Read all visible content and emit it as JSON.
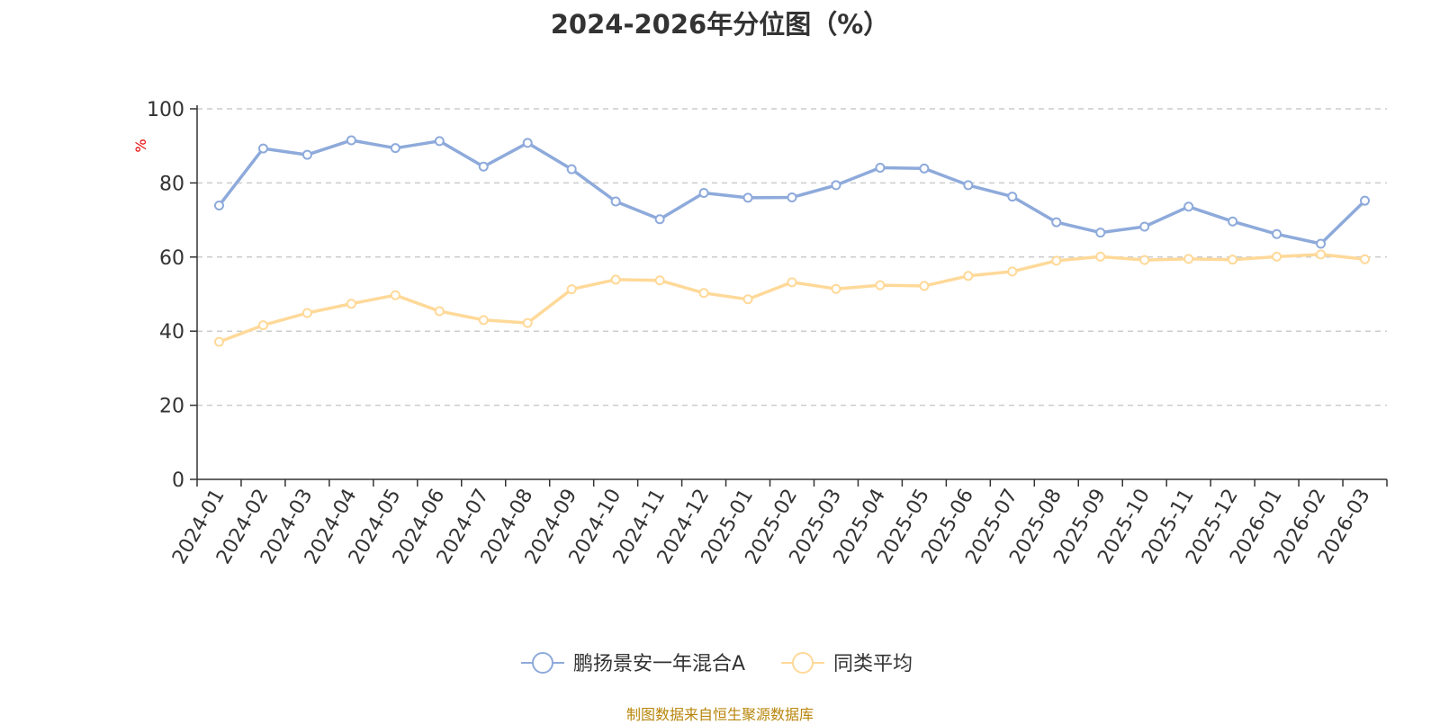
{
  "chart_data": {
    "type": "line",
    "title": "2024-2026年分位图（%）",
    "ylabel": "%",
    "xlabel": "",
    "ylim": [
      0,
      100
    ],
    "yticks": [
      0,
      20,
      40,
      60,
      80,
      100
    ],
    "grid": true,
    "legend_position": "bottom-center",
    "categories": [
      "2024-01",
      "2024-02",
      "2024-03",
      "2024-04",
      "2024-05",
      "2024-06",
      "2024-07",
      "2024-08",
      "2024-09",
      "2024-10",
      "2024-11",
      "2024-12",
      "2025-01",
      "2025-02",
      "2025-03",
      "2025-04",
      "2025-05",
      "2025-06",
      "2025-07",
      "2025-08",
      "2025-09",
      "2025-10",
      "2025-11",
      "2025-12",
      "2026-01",
      "2026-02",
      "2026-03"
    ],
    "series": [
      {
        "name": "鹏扬景安一年混合A",
        "color": "#8eaadb",
        "values": [
          73.9,
          89.3,
          87.6,
          91.5,
          89.4,
          91.3,
          84.4,
          90.8,
          83.7,
          75.0,
          70.2,
          77.3,
          76.0,
          76.1,
          79.4,
          84.1,
          83.9,
          79.4,
          76.3,
          69.4,
          66.6,
          68.2,
          73.6,
          69.6,
          66.2,
          63.6,
          75.2
        ]
      },
      {
        "name": "同类平均",
        "color": "#ffd999",
        "values": [
          37.1,
          41.6,
          44.9,
          47.4,
          49.7,
          45.4,
          43.0,
          42.2,
          51.3,
          53.9,
          53.7,
          50.3,
          48.6,
          53.2,
          51.4,
          52.4,
          52.2,
          54.9,
          56.1,
          59.0,
          60.1,
          59.2,
          59.5,
          59.3,
          60.1,
          60.7,
          59.4
        ]
      }
    ]
  },
  "footer": {
    "source": "制图数据来自恒生聚源数据库"
  }
}
